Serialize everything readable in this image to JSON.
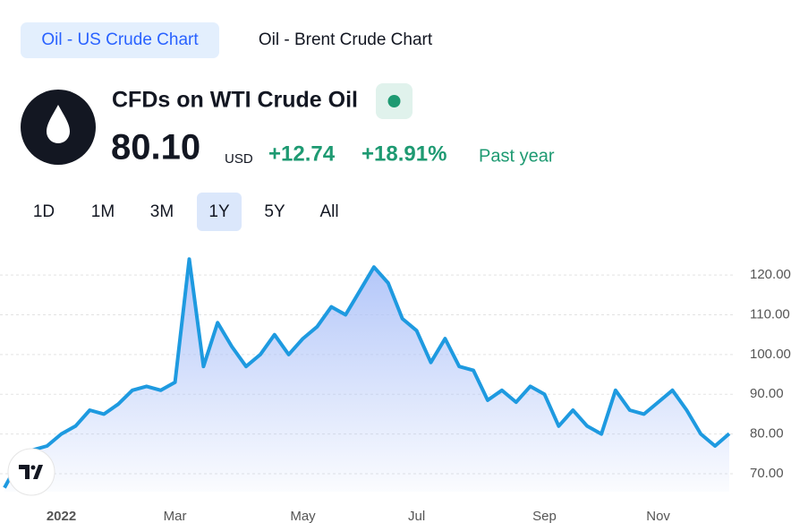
{
  "tabs": [
    "Oil - US Crude Chart",
    "Oil - Brent Crude Chart"
  ],
  "header": {
    "title": "CFDs on WTI Crude Oil",
    "price": "80.10",
    "currency": "USD",
    "change": "+12.74",
    "change_percent": "+18.91%",
    "period": "Past year"
  },
  "ranges": [
    "1D",
    "1M",
    "3M",
    "1Y",
    "5Y",
    "All"
  ],
  "chart_data": {
    "type": "area",
    "color": "#1e9ae0",
    "categories": [
      null,
      null,
      null,
      null,
      "2022",
      null,
      null,
      null,
      null,
      null,
      null,
      null,
      "Mar",
      null,
      null,
      null,
      null,
      null,
      null,
      null,
      null,
      "May",
      null,
      null,
      null,
      null,
      null,
      null,
      null,
      "Jul",
      null,
      null,
      null,
      null,
      null,
      null,
      null,
      null,
      "Sep",
      null,
      null,
      null,
      null,
      null,
      null,
      null,
      "Nov",
      null,
      null,
      null,
      null,
      null
    ],
    "values": [
      66.5,
      73,
      76,
      77,
      80,
      82,
      86,
      85,
      87.5,
      91,
      92,
      91,
      93,
      124,
      97,
      108,
      102,
      97,
      100,
      105,
      100,
      104,
      107,
      112,
      110,
      116,
      122,
      118,
      109,
      106,
      98,
      104,
      97,
      96,
      88.5,
      91,
      88,
      92,
      90,
      82,
      86,
      82,
      80,
      91,
      86,
      85,
      88,
      91,
      86,
      80,
      77,
      80.1
    ],
    "ylim": [
      65.5,
      127
    ],
    "yticks": [
      {
        "value": 70,
        "label": "70.00"
      },
      {
        "value": 80,
        "label": "80.00"
      },
      {
        "value": 90,
        "label": "90.00"
      },
      {
        "value": 100,
        "label": "100.00"
      },
      {
        "value": 110,
        "label": "110.00"
      },
      {
        "value": 120,
        "label": "120.00"
      }
    ],
    "grid": true
  }
}
